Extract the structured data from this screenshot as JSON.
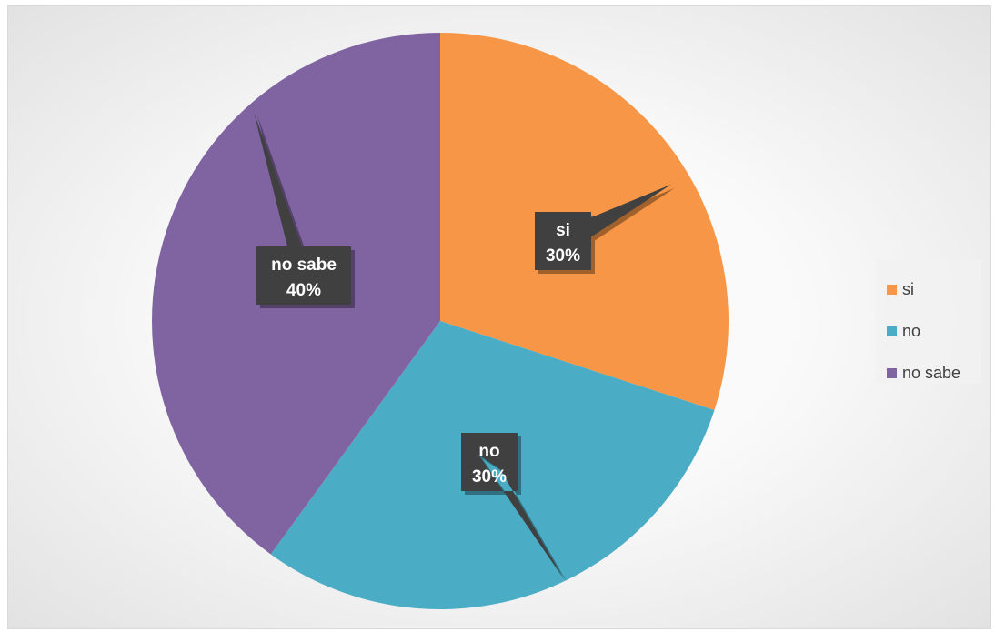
{
  "chart_data": {
    "type": "pie",
    "title": "",
    "categories": [
      "si",
      "no",
      "no sabe"
    ],
    "values": [
      30,
      30,
      40
    ],
    "data_labels": [
      {
        "category": "si",
        "percent": "30%"
      },
      {
        "category": "no",
        "percent": "30%"
      },
      {
        "category": "no sabe",
        "percent": "40%"
      }
    ],
    "colors": [
      "#f79646",
      "#4bacc6",
      "#8064a2"
    ],
    "start_angle_deg": 0,
    "direction": "clockwise",
    "legend_position": "right",
    "data_label_style": "callout"
  },
  "legend": {
    "items": [
      {
        "label": "si",
        "color": "#f79646"
      },
      {
        "label": "no",
        "color": "#4bacc6"
      },
      {
        "label": "no sabe",
        "color": "#8064a2"
      }
    ]
  }
}
